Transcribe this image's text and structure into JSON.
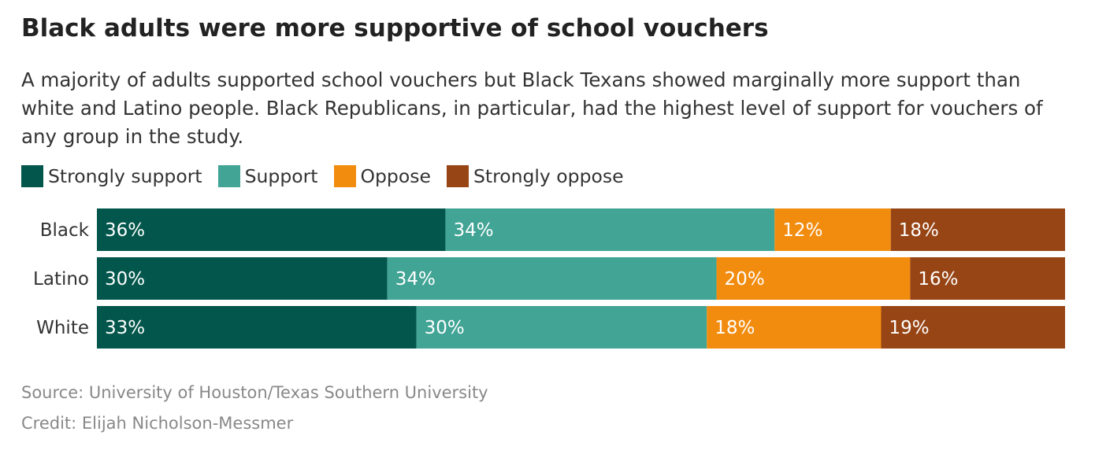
{
  "title": "Black adults were more supportive of school vouchers",
  "subtitle": "A majority of adults supported school vouchers but Black Texans showed marginally more support than white and Latino people. Black Republicans, in particular, had the highest level of support for vouchers of any group in the study.",
  "source": "Source: University of Houston/Texas Southern University",
  "credit": "Credit: Elijah Nicholson-Messmer",
  "chart_data": {
    "type": "bar",
    "orientation": "horizontal",
    "stacked": true,
    "categories": [
      "Black",
      "Latino",
      "White"
    ],
    "series": [
      {
        "name": "Strongly support",
        "color": "#02564b",
        "values": [
          36,
          30,
          33
        ]
      },
      {
        "name": "Support",
        "color": "#41a495",
        "values": [
          34,
          34,
          30
        ]
      },
      {
        "name": "Oppose",
        "color": "#f28c0f",
        "values": [
          12,
          20,
          18
        ]
      },
      {
        "name": "Strongly oppose",
        "color": "#974515",
        "values": [
          18,
          16,
          19
        ]
      }
    ],
    "value_suffix": "%",
    "legend_position": "top-left",
    "grid": false
  }
}
